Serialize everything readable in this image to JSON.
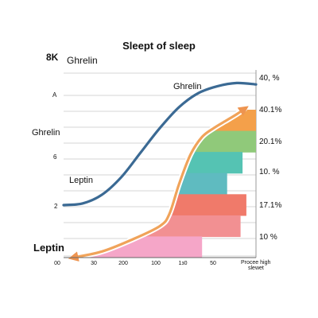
{
  "chart_data": {
    "type": "area",
    "title": "Sleept of sleep",
    "corner_label": "8K",
    "left_labels": [
      {
        "text": "Ghrelin",
        "size": "medium"
      },
      {
        "text": "A",
        "size": "small"
      },
      {
        "text": "Ghrelin",
        "size": "medium"
      },
      {
        "text": "6",
        "size": "small"
      },
      {
        "text": "Leptin",
        "size": "medium"
      },
      {
        "text": "2",
        "size": "small"
      },
      {
        "text": "Leptin",
        "size": "large"
      }
    ],
    "right_labels": [
      "40, %",
      "40.1%",
      "20.1%",
      "10. %",
      "17.1%",
      "10 %"
    ],
    "x_tick_labels": [
      "00",
      "30",
      "200",
      "100",
      "1з0",
      "50"
    ],
    "x_axis_end_label": [
      "Procee high",
      "slewet"
    ],
    "xlim": [
      0,
      1
    ],
    "ylim": [
      0,
      1
    ],
    "grid": true,
    "curves": [
      {
        "label": "Ghrelin",
        "color": "#3b6a94",
        "x": [
          0.0,
          0.1,
          0.2,
          0.3,
          0.4,
          0.5,
          0.6,
          0.7,
          0.8,
          0.9,
          1.0
        ],
        "y": [
          0.3,
          0.31,
          0.36,
          0.46,
          0.6,
          0.74,
          0.86,
          0.94,
          0.98,
          0.998,
          0.99
        ]
      },
      {
        "label": "Leptin",
        "color": "#f0a35a",
        "x": [
          0.05,
          0.2,
          0.35,
          0.5,
          0.55,
          0.6,
          0.66,
          0.72,
          0.78,
          0.84,
          0.9,
          0.94
        ],
        "y": [
          0.0,
          0.035,
          0.1,
          0.18,
          0.25,
          0.42,
          0.59,
          0.69,
          0.74,
          0.78,
          0.82,
          0.85
        ]
      }
    ],
    "bands": [
      {
        "color": "#f4a04a",
        "x_end": 1.0
      },
      {
        "color": "#90c97a",
        "x_end": 1.0
      },
      {
        "color": "#55c3b3",
        "x_end": 0.93
      },
      {
        "color": "#5fbbc0",
        "x_end": 0.85
      },
      {
        "color": "#f07a6a",
        "x_end": 0.95
      },
      {
        "color": "#f29092",
        "x_end": 0.92
      },
      {
        "color": "#f5a6c8",
        "x_end": 0.72
      }
    ]
  }
}
